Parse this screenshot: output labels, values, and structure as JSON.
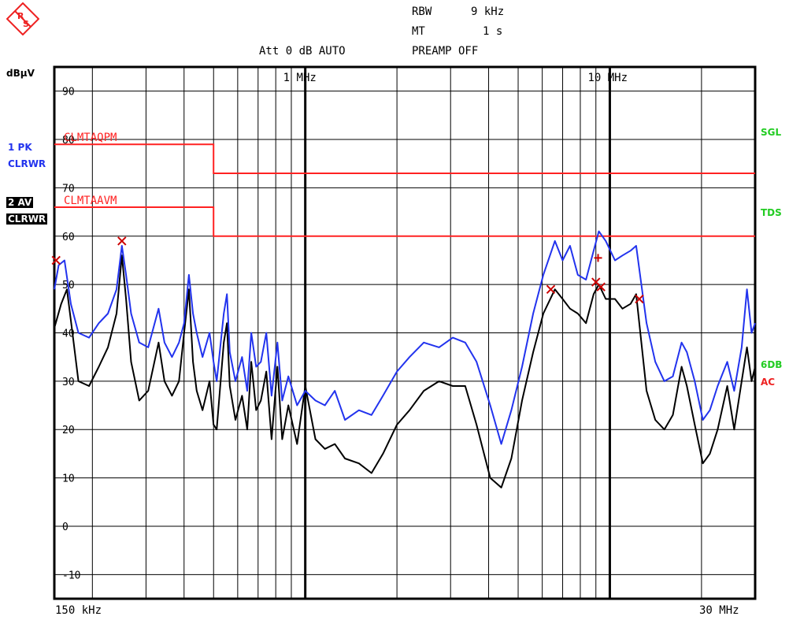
{
  "header": {
    "rbw_label": "RBW",
    "rbw_value": "9 kHz",
    "mt_label": "MT",
    "mt_value": "1 s",
    "att_label": "Att 0 dB AUTO",
    "preamp_label": "PREAMP OFF"
  },
  "left_panel": {
    "unit": "dBµV",
    "trace1_line1": "1 PK",
    "trace1_line2": "CLRWR",
    "trace2_line1": "2 AV",
    "trace2_line2": "CLRWR"
  },
  "right_panel": {
    "sgl": "SGL",
    "tds": "TDS",
    "sixdb": "6DB",
    "ac": "AC"
  },
  "x_axis": {
    "start": "150 kHz",
    "stop": "30 MHz"
  },
  "colors": {
    "pk": "#2233ee",
    "av": "#000000",
    "limit": "#ff2222",
    "marker": "#cc0000",
    "green": "#22cc22"
  },
  "chart_data": {
    "type": "line",
    "x_scale": "log",
    "xlim_hz": [
      150000,
      30000000
    ],
    "ylim": [
      -15,
      95
    ],
    "ylabel": "dBµV",
    "y_ticks": [
      90,
      80,
      70,
      60,
      50,
      40,
      30,
      20,
      10,
      0,
      -10
    ],
    "x_tick_labels": [
      {
        "hz": 1000000,
        "label": "1 MHz"
      },
      {
        "hz": 10000000,
        "label": "10 MHz"
      }
    ],
    "limit_lines": [
      {
        "name": "CLMTAQPM",
        "points": [
          [
            150000,
            79
          ],
          [
            500000,
            79
          ],
          [
            500000,
            73
          ],
          [
            30000000,
            73
          ]
        ]
      },
      {
        "name": "CLMTAAVM",
        "points": [
          [
            150000,
            66
          ],
          [
            500000,
            66
          ],
          [
            500000,
            60
          ],
          [
            30000000,
            60
          ]
        ]
      }
    ],
    "series": [
      {
        "name": "1 PK",
        "color": "#2233ee",
        "points": [
          [
            150000,
            49
          ],
          [
            155000,
            54
          ],
          [
            162000,
            55
          ],
          [
            170000,
            46
          ],
          [
            180000,
            40
          ],
          [
            195000,
            39
          ],
          [
            210000,
            42
          ],
          [
            225000,
            44
          ],
          [
            240000,
            49
          ],
          [
            250000,
            58
          ],
          [
            258000,
            52
          ],
          [
            268000,
            44
          ],
          [
            285000,
            38
          ],
          [
            305000,
            37
          ],
          [
            330000,
            45
          ],
          [
            345000,
            38
          ],
          [
            365000,
            35
          ],
          [
            385000,
            38
          ],
          [
            400000,
            42
          ],
          [
            415000,
            52
          ],
          [
            428000,
            44
          ],
          [
            440000,
            40
          ],
          [
            460000,
            35
          ],
          [
            485000,
            40
          ],
          [
            500000,
            34
          ],
          [
            512000,
            30
          ],
          [
            540000,
            44
          ],
          [
            553000,
            48
          ],
          [
            565000,
            36
          ],
          [
            590000,
            30
          ],
          [
            620000,
            35
          ],
          [
            645000,
            28
          ],
          [
            665000,
            40
          ],
          [
            690000,
            33
          ],
          [
            715000,
            34
          ],
          [
            745000,
            40
          ],
          [
            775000,
            27
          ],
          [
            810000,
            38
          ],
          [
            840000,
            26
          ],
          [
            880000,
            31
          ],
          [
            940000,
            25
          ],
          [
            1000000,
            28
          ],
          [
            1080000,
            26
          ],
          [
            1160000,
            25
          ],
          [
            1250000,
            28
          ],
          [
            1350000,
            22
          ],
          [
            1500000,
            24
          ],
          [
            1650000,
            23
          ],
          [
            1800000,
            27
          ],
          [
            2000000,
            32
          ],
          [
            2200000,
            35
          ],
          [
            2450000,
            38
          ],
          [
            2750000,
            37
          ],
          [
            3050000,
            39
          ],
          [
            3350000,
            38
          ],
          [
            3650000,
            34
          ],
          [
            4050000,
            25
          ],
          [
            4400000,
            17
          ],
          [
            4750000,
            24
          ],
          [
            5150000,
            33
          ],
          [
            5600000,
            44
          ],
          [
            6050000,
            52
          ],
          [
            6600000,
            59
          ],
          [
            7000000,
            55
          ],
          [
            7400000,
            58
          ],
          [
            7850000,
            52
          ],
          [
            8350000,
            51
          ],
          [
            8850000,
            57
          ],
          [
            9200000,
            61
          ],
          [
            9700000,
            59
          ],
          [
            10400000,
            55
          ],
          [
            11000000,
            56
          ],
          [
            11700000,
            57
          ],
          [
            12200000,
            58
          ],
          [
            13200000,
            42
          ],
          [
            14100000,
            34
          ],
          [
            15100000,
            30
          ],
          [
            16100000,
            31
          ],
          [
            17200000,
            38
          ],
          [
            17900000,
            36
          ],
          [
            19000000,
            30
          ],
          [
            20200000,
            22
          ],
          [
            21300000,
            24
          ],
          [
            22600000,
            29
          ],
          [
            24300000,
            34
          ],
          [
            25600000,
            28
          ],
          [
            27100000,
            37
          ],
          [
            28200000,
            49
          ],
          [
            29200000,
            40
          ],
          [
            30000000,
            42
          ]
        ]
      },
      {
        "name": "2 AV",
        "color": "#000000",
        "points": [
          [
            150000,
            41
          ],
          [
            158000,
            46
          ],
          [
            165000,
            49
          ],
          [
            172000,
            40
          ],
          [
            180000,
            30
          ],
          [
            195000,
            29
          ],
          [
            210000,
            33
          ],
          [
            225000,
            37
          ],
          [
            240000,
            44
          ],
          [
            250000,
            56
          ],
          [
            258000,
            47
          ],
          [
            268000,
            34
          ],
          [
            285000,
            26
          ],
          [
            305000,
            28
          ],
          [
            330000,
            38
          ],
          [
            345000,
            30
          ],
          [
            365000,
            27
          ],
          [
            385000,
            30
          ],
          [
            400000,
            40
          ],
          [
            415000,
            49
          ],
          [
            428000,
            34
          ],
          [
            440000,
            28
          ],
          [
            460000,
            24
          ],
          [
            485000,
            30
          ],
          [
            500000,
            21
          ],
          [
            512000,
            20
          ],
          [
            540000,
            38
          ],
          [
            553000,
            42
          ],
          [
            565000,
            29
          ],
          [
            590000,
            22
          ],
          [
            620000,
            27
          ],
          [
            645000,
            20
          ],
          [
            665000,
            34
          ],
          [
            690000,
            24
          ],
          [
            715000,
            26
          ],
          [
            745000,
            32
          ],
          [
            775000,
            18
          ],
          [
            810000,
            33
          ],
          [
            840000,
            18
          ],
          [
            880000,
            25
          ],
          [
            940000,
            17
          ],
          [
            1000000,
            29
          ],
          [
            1080000,
            18
          ],
          [
            1160000,
            16
          ],
          [
            1250000,
            17
          ],
          [
            1350000,
            14
          ],
          [
            1500000,
            13
          ],
          [
            1650000,
            11
          ],
          [
            1800000,
            15
          ],
          [
            2000000,
            21
          ],
          [
            2200000,
            24
          ],
          [
            2450000,
            28
          ],
          [
            2750000,
            30
          ],
          [
            3050000,
            29
          ],
          [
            3350000,
            29
          ],
          [
            3650000,
            21
          ],
          [
            4050000,
            10
          ],
          [
            4400000,
            8
          ],
          [
            4750000,
            14
          ],
          [
            5150000,
            26
          ],
          [
            5600000,
            36
          ],
          [
            6050000,
            44
          ],
          [
            6600000,
            49
          ],
          [
            7000000,
            47
          ],
          [
            7400000,
            45
          ],
          [
            7850000,
            44
          ],
          [
            8350000,
            42
          ],
          [
            8850000,
            48
          ],
          [
            9200000,
            50
          ],
          [
            9700000,
            47
          ],
          [
            10400000,
            47
          ],
          [
            11000000,
            45
          ],
          [
            11700000,
            46
          ],
          [
            12200000,
            48
          ],
          [
            13200000,
            28
          ],
          [
            14100000,
            22
          ],
          [
            15100000,
            20
          ],
          [
            16100000,
            23
          ],
          [
            17200000,
            33
          ],
          [
            17900000,
            29
          ],
          [
            19000000,
            21
          ],
          [
            20200000,
            13
          ],
          [
            21300000,
            15
          ],
          [
            22600000,
            20
          ],
          [
            24300000,
            29
          ],
          [
            25600000,
            20
          ],
          [
            27100000,
            30
          ],
          [
            28200000,
            37
          ],
          [
            29200000,
            30
          ],
          [
            30000000,
            33
          ]
        ]
      }
    ],
    "markers": [
      {
        "hz": 152000,
        "dbuv": 55,
        "type": "x"
      },
      {
        "hz": 250000,
        "dbuv": 59,
        "type": "x"
      },
      {
        "hz": 6400000,
        "dbuv": 49,
        "type": "x"
      },
      {
        "hz": 9000000,
        "dbuv": 50.5,
        "type": "x"
      },
      {
        "hz": 9350000,
        "dbuv": 49.5,
        "type": "x"
      },
      {
        "hz": 12500000,
        "dbuv": 47,
        "type": "x"
      },
      {
        "hz": 9150000,
        "dbuv": 55.5,
        "type": "plus"
      }
    ]
  }
}
